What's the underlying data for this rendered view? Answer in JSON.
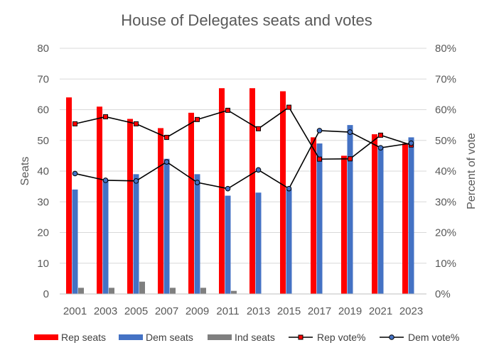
{
  "chart_data": {
    "type": "bar",
    "title": "House of Delegates seats and votes",
    "categories": [
      "2001",
      "2003",
      "2005",
      "2007",
      "2009",
      "2011",
      "2013",
      "2015",
      "2017",
      "2019",
      "2021",
      "2023"
    ],
    "ylabel": "Seats",
    "y2label": "Percent of vote",
    "ylim": [
      0,
      80
    ],
    "y2lim": [
      0,
      80
    ],
    "yticks": [
      "0",
      "10",
      "20",
      "30",
      "40",
      "50",
      "60",
      "70",
      "80"
    ],
    "y2ticks": [
      "0%",
      "10%",
      "20%",
      "30%",
      "40%",
      "50%",
      "60%",
      "70%",
      "80%"
    ],
    "grid": true,
    "legend_position": "bottom",
    "bar_series": [
      {
        "name": "Rep seats",
        "color": "#ff0000",
        "values": [
          64,
          61,
          57,
          54,
          59,
          67,
          67,
          66,
          51,
          45,
          52,
          49
        ]
      },
      {
        "name": "Dem seats",
        "color": "#4472c4",
        "values": [
          34,
          37,
          39,
          44,
          39,
          32,
          33,
          34,
          49,
          55,
          48,
          51
        ]
      },
      {
        "name": "Ind seats",
        "color": "#7f7f7f",
        "values": [
          2,
          2,
          4,
          2,
          2,
          1,
          0,
          0,
          0,
          0,
          0,
          0
        ]
      }
    ],
    "line_series": [
      {
        "name": "Rep vote%",
        "color": "#000000",
        "marker_color": "#ff0000",
        "marker": "square",
        "values": [
          55.4,
          57.7,
          55.4,
          51.0,
          56.8,
          59.8,
          53.8,
          60.8,
          43.9,
          44.0,
          51.7,
          48.5
        ]
      },
      {
        "name": "Dem vote%",
        "color": "#000000",
        "marker_color": "#4472c4",
        "marker": "circle",
        "values": [
          39.2,
          37.0,
          36.8,
          43.0,
          36.3,
          34.3,
          40.4,
          34.3,
          53.2,
          52.7,
          47.6,
          49.1
        ]
      }
    ]
  }
}
